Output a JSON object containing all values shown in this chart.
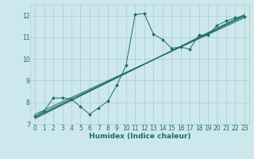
{
  "background_color": "#cde8ec",
  "grid_color": "#b0ced3",
  "line_color": "#1e6b6b",
  "xlim": [
    -0.5,
    23.5
  ],
  "ylim": [
    7,
    12.5
  ],
  "xticks": [
    0,
    1,
    2,
    3,
    4,
    5,
    6,
    7,
    8,
    9,
    10,
    11,
    12,
    13,
    14,
    15,
    16,
    17,
    18,
    19,
    20,
    21,
    22,
    23
  ],
  "yticks": [
    7,
    8,
    9,
    10,
    11,
    12
  ],
  "xlabel": "Humidex (Indice chaleur)",
  "xlabel_fontsize": 6.5,
  "tick_fontsize": 5.5,
  "main_series": {
    "x": [
      0,
      1,
      2,
      3,
      4,
      5,
      6,
      7,
      8,
      9,
      10,
      11,
      12,
      13,
      14,
      15,
      16,
      17,
      18,
      19,
      20,
      21,
      22,
      23
    ],
    "y": [
      7.35,
      7.6,
      8.2,
      8.2,
      8.15,
      7.8,
      7.45,
      7.75,
      8.05,
      8.8,
      9.7,
      12.05,
      12.1,
      11.15,
      10.9,
      10.5,
      10.55,
      10.45,
      11.1,
      11.1,
      11.55,
      11.75,
      11.9,
      11.95
    ]
  },
  "trend_lines": [
    {
      "x": [
        0,
        23
      ],
      "y": [
        7.35,
        11.97
      ]
    },
    {
      "x": [
        0,
        23
      ],
      "y": [
        7.25,
        12.05
      ]
    },
    {
      "x": [
        0,
        23
      ],
      "y": [
        7.45,
        11.9
      ]
    },
    {
      "x": [
        0,
        23
      ],
      "y": [
        7.3,
        12.0
      ]
    }
  ]
}
